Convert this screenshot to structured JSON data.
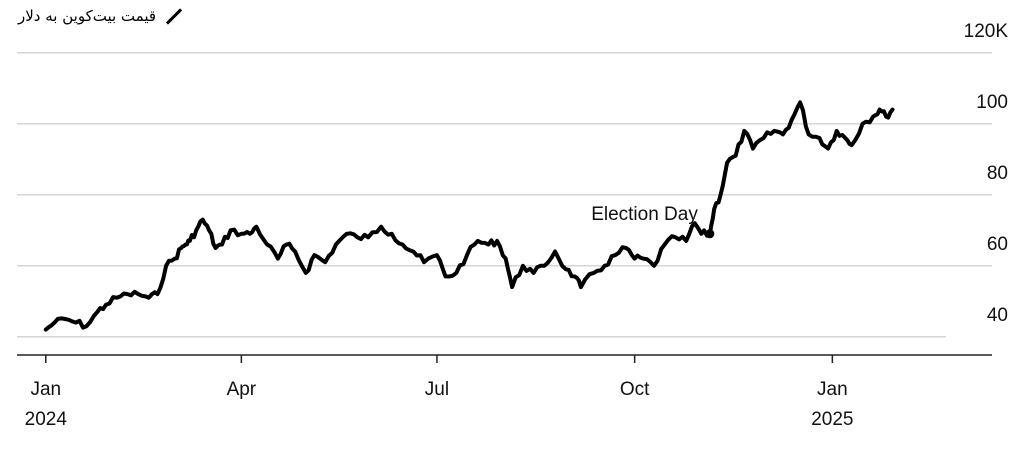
{
  "chart_data": {
    "type": "line",
    "title": "",
    "xlabel": "",
    "ylabel": "",
    "ylim": [
      25,
      125
    ],
    "y_ticks": [
      {
        "value": 120,
        "label": "120K"
      },
      {
        "value": 100,
        "label": "100"
      },
      {
        "value": 80,
        "label": "80"
      },
      {
        "value": 60,
        "label": "60"
      },
      {
        "value": 40,
        "label": "40"
      }
    ],
    "x_ticks": [
      {
        "date": "2024-01-01",
        "label": "Jan",
        "year": "2024"
      },
      {
        "date": "2024-04-01",
        "label": "Apr",
        "year": ""
      },
      {
        "date": "2024-07-01",
        "label": "Jul",
        "year": ""
      },
      {
        "date": "2024-10-01",
        "label": "Oct",
        "year": ""
      },
      {
        "date": "2025-01-01",
        "label": "Jan",
        "year": "2025"
      }
    ],
    "xlim": [
      "2023-12-20",
      "2025-03-20"
    ],
    "grid": true,
    "legend": {
      "position": "top-left",
      "label": "قیمت بیت‌کوین به دلار"
    },
    "annotations": [
      {
        "date": "2024-11-05",
        "value": 69,
        "text": "Election Day"
      }
    ],
    "series": [
      {
        "name": "قیمت بیت‌کوین به دلار",
        "color": "#000000",
        "points": [
          [
            "2024-01-01",
            42
          ],
          [
            "2024-01-05",
            44
          ],
          [
            "2024-01-10",
            45
          ],
          [
            "2024-01-15",
            44
          ],
          [
            "2024-01-20",
            43
          ],
          [
            "2024-01-25",
            47
          ],
          [
            "2024-01-29",
            49
          ],
          [
            "2024-02-03",
            51
          ],
          [
            "2024-02-08",
            52
          ],
          [
            "2024-02-13",
            52
          ],
          [
            "2024-02-18",
            51
          ],
          [
            "2024-02-22",
            52
          ],
          [
            "2024-02-26",
            60
          ],
          [
            "2024-03-01",
            62
          ],
          [
            "2024-03-04",
            65
          ],
          [
            "2024-03-06",
            66
          ],
          [
            "2024-03-08",
            67
          ],
          [
            "2024-03-11",
            70
          ],
          [
            "2024-03-14",
            73
          ],
          [
            "2024-03-17",
            70
          ],
          [
            "2024-03-20",
            65
          ],
          [
            "2024-03-23",
            66
          ],
          [
            "2024-03-27",
            70
          ],
          [
            "2024-04-01",
            69
          ],
          [
            "2024-04-05",
            69
          ],
          [
            "2024-04-08",
            71
          ],
          [
            "2024-04-13",
            66
          ],
          [
            "2024-04-18",
            62
          ],
          [
            "2024-04-22",
            66
          ],
          [
            "2024-04-26",
            64
          ],
          [
            "2024-05-01",
            58
          ],
          [
            "2024-05-05",
            63
          ],
          [
            "2024-05-10",
            61
          ],
          [
            "2024-05-15",
            66
          ],
          [
            "2024-05-20",
            69
          ],
          [
            "2024-05-25",
            68
          ],
          [
            "2024-05-30",
            68
          ],
          [
            "2024-06-05",
            71
          ],
          [
            "2024-06-10",
            69
          ],
          [
            "2024-06-15",
            66
          ],
          [
            "2024-06-20",
            64
          ],
          [
            "2024-06-25",
            61
          ],
          [
            "2024-07-01",
            63
          ],
          [
            "2024-07-05",
            57
          ],
          [
            "2024-07-10",
            58
          ],
          [
            "2024-07-15",
            63
          ],
          [
            "2024-07-20",
            67
          ],
          [
            "2024-07-25",
            66
          ],
          [
            "2024-07-29",
            67
          ],
          [
            "2024-08-02",
            62
          ],
          [
            "2024-08-05",
            54
          ],
          [
            "2024-08-10",
            60
          ],
          [
            "2024-08-15",
            58
          ],
          [
            "2024-08-20",
            60
          ],
          [
            "2024-08-25",
            64
          ],
          [
            "2024-08-30",
            59
          ],
          [
            "2024-09-03",
            57
          ],
          [
            "2024-09-06",
            54
          ],
          [
            "2024-09-12",
            58
          ],
          [
            "2024-09-17",
            60
          ],
          [
            "2024-09-22",
            63
          ],
          [
            "2024-09-27",
            65
          ],
          [
            "2024-10-01",
            62
          ],
          [
            "2024-10-05",
            62
          ],
          [
            "2024-10-10",
            60
          ],
          [
            "2024-10-15",
            66
          ],
          [
            "2024-10-20",
            68
          ],
          [
            "2024-10-25",
            67
          ],
          [
            "2024-10-29",
            72
          ],
          [
            "2024-11-01",
            69
          ],
          [
            "2024-11-05",
            69
          ],
          [
            "2024-11-07",
            76
          ],
          [
            "2024-11-10",
            80
          ],
          [
            "2024-11-13",
            89
          ],
          [
            "2024-11-17",
            91
          ],
          [
            "2024-11-21",
            98
          ],
          [
            "2024-11-25",
            93
          ],
          [
            "2024-11-30",
            96
          ],
          [
            "2024-12-05",
            98
          ],
          [
            "2024-12-09",
            97
          ],
          [
            "2024-12-13",
            101
          ],
          [
            "2024-12-17",
            106
          ],
          [
            "2024-12-21",
            97
          ],
          [
            "2024-12-26",
            96
          ],
          [
            "2024-12-30",
            93
          ],
          [
            "2025-01-03",
            98
          ],
          [
            "2025-01-07",
            96
          ],
          [
            "2025-01-10",
            94
          ],
          [
            "2025-01-15",
            100
          ],
          [
            "2025-01-20",
            102
          ],
          [
            "2025-01-23",
            104
          ],
          [
            "2025-01-26",
            102
          ],
          [
            "2025-01-29",
            104
          ]
        ]
      }
    ]
  }
}
